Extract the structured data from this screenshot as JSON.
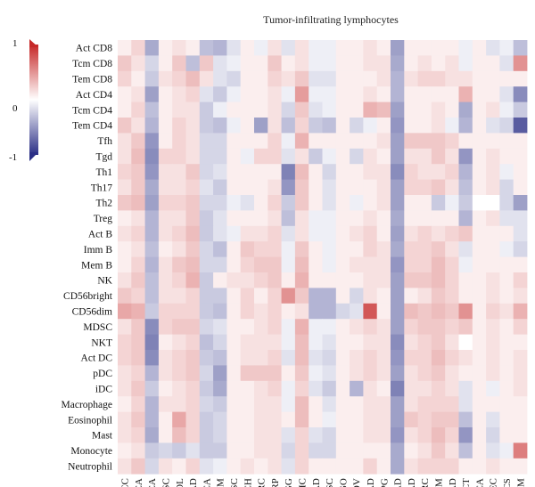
{
  "chart_data": {
    "type": "heatmap",
    "title": "Tumor-infiltrating lymphocytes",
    "rows": [
      "Act CD8",
      "Tcm CD8",
      "Tem CD8",
      "Act CD4",
      "Tcm CD4",
      "Tem CD4",
      "Tfh",
      "Tgd",
      "Th1",
      "Th17",
      "Th2",
      "Treg",
      "Act B",
      "Imm B",
      "Mem B",
      "NK",
      "CD56bright",
      "CD56dim",
      "MDSC",
      "NKT",
      "Act DC",
      "pDC",
      "iDC",
      "Macrophage",
      "Eosinophil",
      "Mast",
      "Monocyte",
      "Neutrophil"
    ],
    "columns": [
      "ACC",
      "BLCA",
      "BRCA",
      "CESC",
      "CHOL",
      "COAD",
      "ESCA",
      "GBM",
      "HNSC",
      "KICH",
      "KIRC",
      "KIRP",
      "LGG",
      "LIHC",
      "LUAD",
      "LUSC",
      "MESO",
      "OV",
      "PAAD",
      "PCPG",
      "PRAD",
      "READ",
      "SARC",
      "SKCM",
      "STAD",
      "TGCT",
      "THCA",
      "UCEC",
      "UCS",
      "UVM"
    ],
    "values": [
      [
        0.05,
        0.15,
        -0.35,
        0.05,
        0.1,
        0.05,
        -0.25,
        -0.3,
        -0.1,
        0.05,
        -0.05,
        0.1,
        -0.1,
        0.1,
        -0.05,
        -0.05,
        0.05,
        0.05,
        0.1,
        0.05,
        -0.4,
        0.05,
        0.05,
        0.05,
        0.05,
        -0.05,
        0.05,
        -0.1,
        -0.05,
        -0.25
      ],
      [
        0.2,
        0.1,
        -0.15,
        0.05,
        0.2,
        -0.25,
        0.2,
        -0.1,
        -0.05,
        0.05,
        0.05,
        0.2,
        0.05,
        0.1,
        -0.05,
        -0.05,
        0.05,
        0.05,
        0.1,
        0.1,
        -0.35,
        0.05,
        0.1,
        0.05,
        0.1,
        -0.05,
        0.05,
        0.05,
        -0.1,
        0.45
      ],
      [
        0.15,
        0.05,
        -0.2,
        0.1,
        0.15,
        0.25,
        0.1,
        -0.1,
        -0.15,
        0.05,
        0.05,
        0.15,
        0.1,
        0.2,
        -0.1,
        -0.1,
        0.05,
        0.05,
        0.05,
        0.1,
        -0.3,
        0.1,
        0.15,
        0.15,
        0.1,
        0.1,
        0.05,
        0.05,
        0.05,
        0.05
      ],
      [
        0.05,
        0.1,
        -0.4,
        0.05,
        0.1,
        0.15,
        -0.1,
        -0.2,
        -0.05,
        0.05,
        0.05,
        0.1,
        -0.05,
        0.4,
        -0.05,
        -0.05,
        0.05,
        0.05,
        0.1,
        0.05,
        -0.3,
        0.05,
        0.05,
        0.05,
        0.05,
        0.3,
        0.05,
        0.05,
        -0.1,
        -0.5
      ],
      [
        0.05,
        0.15,
        -0.25,
        0.05,
        0.1,
        0.1,
        -0.2,
        -0.05,
        0.05,
        0.05,
        0.05,
        0.1,
        -0.15,
        0.2,
        -0.1,
        -0.05,
        0.05,
        0.05,
        0.3,
        0.25,
        -0.4,
        0.05,
        0.05,
        0.1,
        0.05,
        -0.35,
        0.05,
        0.1,
        -0.05,
        -0.2
      ],
      [
        0.2,
        0.1,
        -0.3,
        0.05,
        0.15,
        0.1,
        -0.2,
        -0.25,
        -0.05,
        0.05,
        -0.4,
        0.1,
        -0.25,
        0.15,
        -0.2,
        -0.25,
        0.05,
        -0.15,
        -0.05,
        0.05,
        -0.45,
        0.05,
        0.05,
        0.1,
        -0.05,
        -0.3,
        0.05,
        -0.1,
        -0.15,
        -0.75
      ],
      [
        0.1,
        0.2,
        -0.45,
        0.05,
        0.15,
        0.1,
        -0.15,
        -0.15,
        0.05,
        0.05,
        0.05,
        0.15,
        -0.05,
        0.3,
        0.05,
        0.05,
        0.05,
        0.05,
        0.05,
        0.1,
        -0.4,
        0.2,
        0.2,
        0.2,
        0.15,
        0.05,
        0.05,
        0.05,
        0.05,
        0.05
      ],
      [
        0.1,
        0.25,
        -0.5,
        0.15,
        0.15,
        0.1,
        -0.15,
        -0.15,
        0.05,
        -0.05,
        0.15,
        0.15,
        -0.1,
        0.1,
        -0.2,
        -0.05,
        0.05,
        -0.15,
        0.1,
        0.05,
        -0.4,
        0.1,
        0.1,
        0.2,
        0.1,
        -0.45,
        0.05,
        0.1,
        0.05,
        0.05
      ],
      [
        0.15,
        0.2,
        -0.45,
        0.1,
        0.1,
        0.2,
        -0.15,
        -0.1,
        0.05,
        0.05,
        0.05,
        0.05,
        -0.55,
        0.25,
        0.05,
        -0.15,
        0.05,
        0.05,
        0.1,
        0.1,
        -0.5,
        0.15,
        0.1,
        0.1,
        0.15,
        -0.3,
        0.05,
        0.1,
        -0.05,
        0.05
      ],
      [
        0.1,
        0.2,
        -0.35,
        0.1,
        0.1,
        0.15,
        -0.1,
        -0.2,
        0.05,
        0.05,
        0.05,
        0.1,
        -0.45,
        0.2,
        0.05,
        -0.1,
        0.05,
        0.05,
        0.05,
        0.1,
        -0.4,
        0.15,
        0.15,
        0.2,
        0.1,
        -0.25,
        0.05,
        0.1,
        -0.15,
        0.05
      ],
      [
        0.2,
        0.25,
        -0.4,
        0.15,
        0.15,
        0.2,
        -0.15,
        -0.15,
        -0.05,
        -0.1,
        0.05,
        0.15,
        -0.2,
        0.2,
        0.05,
        -0.1,
        0.05,
        -0.05,
        0.05,
        0.1,
        -0.4,
        0.05,
        0.05,
        -0.2,
        -0.05,
        -0.2,
        0.05,
        0.0,
        -0.15,
        -0.4
      ],
      [
        0.05,
        0.1,
        -0.3,
        0.1,
        0.1,
        0.2,
        -0.2,
        -0.1,
        0.05,
        0.05,
        0.05,
        0.1,
        -0.25,
        0.1,
        -0.05,
        -0.05,
        0.05,
        0.05,
        0.1,
        0.05,
        -0.35,
        0.05,
        0.05,
        0.05,
        0.05,
        -0.3,
        0.05,
        0.1,
        -0.1,
        -0.1
      ],
      [
        0.1,
        0.15,
        -0.3,
        0.1,
        0.15,
        0.25,
        -0.2,
        -0.1,
        -0.05,
        0.1,
        0.1,
        0.15,
        -0.1,
        0.1,
        -0.05,
        -0.05,
        0.05,
        0.1,
        0.15,
        0.05,
        -0.4,
        0.1,
        0.15,
        0.1,
        0.15,
        0.2,
        0.05,
        0.05,
        0.05,
        -0.1
      ],
      [
        0.05,
        0.1,
        -0.25,
        0.05,
        0.1,
        0.2,
        -0.15,
        -0.25,
        0.05,
        0.2,
        0.15,
        0.15,
        -0.05,
        0.2,
        0.05,
        -0.05,
        0.05,
        0.05,
        0.15,
        0.1,
        -0.35,
        0.15,
        0.15,
        0.2,
        0.1,
        -0.1,
        0.05,
        0.05,
        -0.05,
        -0.15
      ],
      [
        0.05,
        0.15,
        -0.3,
        0.1,
        0.2,
        0.25,
        -0.15,
        -0.15,
        0.05,
        0.15,
        0.2,
        0.2,
        -0.05,
        0.25,
        0.05,
        -0.05,
        0.05,
        0.1,
        0.1,
        0.1,
        -0.45,
        0.15,
        0.15,
        0.25,
        0.15,
        -0.05,
        0.05,
        0.05,
        0.05,
        0.05
      ],
      [
        0.1,
        0.2,
        -0.25,
        0.1,
        0.15,
        0.3,
        -0.2,
        0.05,
        0.1,
        0.1,
        0.15,
        0.2,
        0.05,
        0.3,
        0.05,
        0.05,
        0.05,
        0.05,
        0.1,
        0.1,
        -0.4,
        0.2,
        0.2,
        0.25,
        0.15,
        0.05,
        0.05,
        0.1,
        0.05,
        0.15
      ],
      [
        0.2,
        0.15,
        -0.25,
        0.1,
        0.1,
        0.15,
        -0.2,
        -0.2,
        0.05,
        0.15,
        0.05,
        0.15,
        0.45,
        0.2,
        -0.3,
        -0.3,
        0.05,
        -0.15,
        0.1,
        0.05,
        -0.4,
        0.05,
        0.1,
        0.2,
        0.15,
        0.05,
        0.05,
        0.1,
        0.05,
        0.1
      ],
      [
        0.35,
        0.3,
        -0.2,
        0.15,
        0.15,
        0.15,
        -0.2,
        -0.25,
        0.05,
        0.15,
        0.1,
        0.15,
        0.05,
        0.1,
        -0.3,
        -0.3,
        -0.15,
        -0.1,
        0.75,
        0.05,
        -0.4,
        0.25,
        0.2,
        0.25,
        0.2,
        0.45,
        0.05,
        0.15,
        0.1,
        0.3
      ],
      [
        0.1,
        0.2,
        -0.5,
        0.15,
        0.2,
        0.2,
        -0.15,
        -0.1,
        0.05,
        0.05,
        0.1,
        0.15,
        -0.05,
        0.3,
        -0.05,
        -0.05,
        0.05,
        0.1,
        0.15,
        0.1,
        -0.4,
        0.15,
        0.2,
        0.2,
        0.15,
        0.2,
        0.05,
        0.1,
        0.05,
        0.15
      ],
      [
        0.15,
        0.2,
        -0.55,
        0.05,
        0.1,
        0.15,
        -0.25,
        -0.15,
        0.05,
        0.1,
        0.1,
        0.1,
        -0.05,
        0.25,
        -0.05,
        -0.1,
        0.05,
        0.05,
        0.1,
        0.1,
        -0.5,
        0.1,
        0.15,
        0.2,
        0.1,
        0.0,
        0.05,
        0.1,
        0.05,
        0.05
      ],
      [
        0.15,
        0.2,
        -0.5,
        0.1,
        0.15,
        0.2,
        -0.2,
        -0.25,
        0.05,
        0.1,
        0.1,
        0.15,
        -0.1,
        0.25,
        -0.1,
        -0.15,
        0.05,
        0.1,
        0.15,
        0.1,
        -0.45,
        0.15,
        0.15,
        0.25,
        0.15,
        0.1,
        0.05,
        0.1,
        0.05,
        0.1
      ],
      [
        0.1,
        0.15,
        -0.3,
        0.1,
        0.15,
        0.2,
        -0.15,
        -0.4,
        0.05,
        0.2,
        0.2,
        0.2,
        0.05,
        0.2,
        -0.05,
        -0.1,
        0.05,
        0.1,
        0.15,
        0.1,
        -0.4,
        0.1,
        0.15,
        0.2,
        0.1,
        0.05,
        0.05,
        0.1,
        0.05,
        0.1
      ],
      [
        0.1,
        0.2,
        -0.2,
        0.05,
        0.1,
        0.15,
        -0.2,
        -0.35,
        0.05,
        0.05,
        0.1,
        0.15,
        -0.05,
        0.15,
        -0.1,
        -0.2,
        0.05,
        -0.3,
        0.1,
        0.05,
        -0.55,
        0.1,
        0.1,
        0.15,
        0.1,
        -0.1,
        0.05,
        -0.05,
        0.05,
        0.1
      ],
      [
        0.05,
        0.15,
        -0.3,
        0.1,
        0.1,
        0.15,
        -0.15,
        -0.2,
        0.05,
        0.05,
        0.1,
        0.1,
        -0.05,
        0.25,
        0.05,
        -0.1,
        0.05,
        0.05,
        0.1,
        0.1,
        -0.4,
        0.1,
        0.15,
        0.15,
        0.15,
        -0.1,
        0.05,
        0.05,
        0.05,
        0.05
      ],
      [
        0.1,
        0.2,
        -0.3,
        0.05,
        0.35,
        0.15,
        -0.2,
        -0.15,
        0.05,
        0.05,
        0.1,
        0.1,
        0.05,
        0.25,
        0.05,
        -0.05,
        0.05,
        0.05,
        0.1,
        0.1,
        -0.4,
        0.2,
        0.15,
        0.2,
        0.2,
        -0.25,
        0.05,
        -0.1,
        0.05,
        0.05
      ],
      [
        0.1,
        0.15,
        -0.35,
        0.05,
        0.25,
        0.15,
        -0.2,
        -0.15,
        0.05,
        0.05,
        0.1,
        0.1,
        -0.1,
        0.15,
        -0.1,
        -0.15,
        0.05,
        0.05,
        0.1,
        0.1,
        -0.45,
        0.1,
        0.15,
        0.25,
        0.15,
        -0.45,
        0.05,
        -0.15,
        0.05,
        0.05
      ],
      [
        0.05,
        0.1,
        -0.2,
        -0.15,
        -0.2,
        -0.1,
        -0.2,
        -0.2,
        0.05,
        0.05,
        0.1,
        0.1,
        -0.15,
        0.15,
        -0.15,
        -0.15,
        0.05,
        0.05,
        0.05,
        0.05,
        -0.35,
        0.05,
        0.1,
        0.2,
        0.1,
        -0.25,
        0.05,
        -0.1,
        -0.05,
        0.55
      ],
      [
        0.1,
        0.2,
        -0.15,
        0.1,
        0.05,
        0.15,
        -0.1,
        -0.05,
        0.05,
        0.1,
        0.05,
        0.1,
        -0.1,
        0.15,
        0.05,
        0.05,
        0.05,
        0.05,
        0.15,
        0.05,
        -0.35,
        0.1,
        0.15,
        0.15,
        0.15,
        0.05,
        0.05,
        0.1,
        0.05,
        0.05
      ]
    ],
    "missing_cells": [
      [
        10,
        26
      ]
    ],
    "color_scale": {
      "min": -1,
      "mid": 0,
      "max": 1,
      "low_color": "#2b2f86",
      "mid_color": "#ffffff",
      "high_color": "#c62828"
    },
    "legend_ticks": [
      "1",
      "0",
      "-1"
    ],
    "legend_placement": "top-left"
  }
}
